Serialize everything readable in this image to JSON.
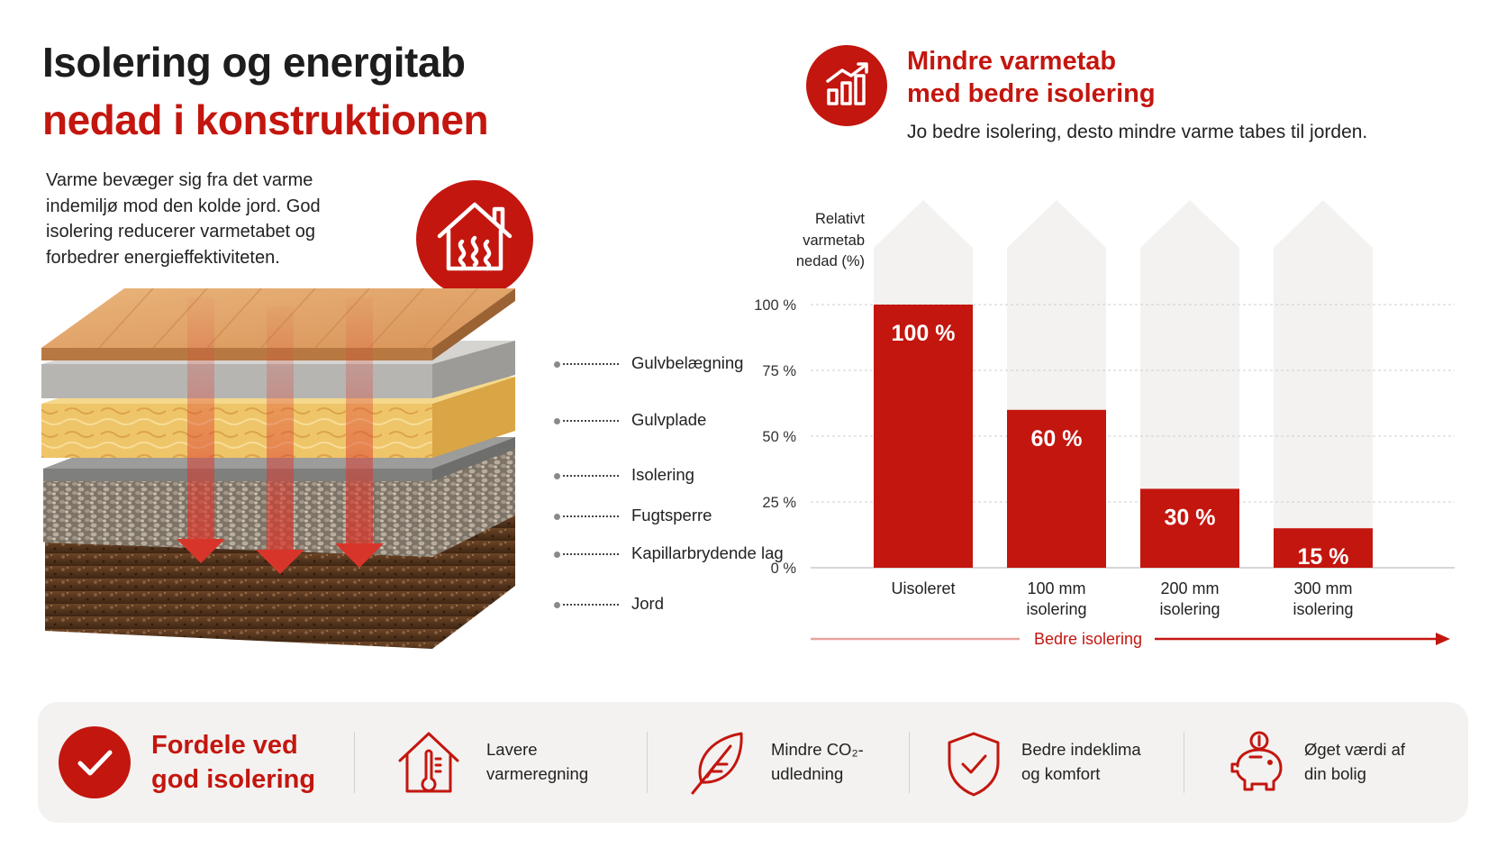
{
  "heading": {
    "line1": "Isolering og energitab",
    "line2": "nedad i konstruktionen"
  },
  "intro": {
    "text": "Varme bevæger sig fra det varme indemiljø mod den kolde jord. God isolering reducerer varmetabet og forbedrer energieffektiviteten."
  },
  "house_icon": "house-heat-icon",
  "layers": {
    "labels": [
      "Gulvbelægning",
      "Gulvplade",
      "Isolering",
      "Fugtsperre",
      "Kapillarbrydende lag",
      "Jord"
    ]
  },
  "chart_header": {
    "icon": "bar-growth-icon",
    "title_line1": "Mindre varmetab",
    "title_line2": "med bedre isolering",
    "subtitle": "Jo bedre isolering, desto mindre varme tabes til jorden."
  },
  "chart_data": {
    "type": "bar",
    "ylabel": "Relativt varmetab nedad (%)",
    "ylim": [
      0,
      100
    ],
    "yticks": [
      "0 %",
      "25 %",
      "50 %",
      "75 %",
      "100 %"
    ],
    "ytick_values": [
      0,
      25,
      50,
      75,
      100
    ],
    "categories": [
      [
        "Uisoleret"
      ],
      [
        "100 mm",
        "isolering"
      ],
      [
        "200 mm",
        "isolering"
      ],
      [
        "300 mm",
        "isolering"
      ]
    ],
    "values": [
      100,
      60,
      30,
      15
    ],
    "value_labels": [
      "100 %",
      "60 %",
      "30 %",
      "15 %"
    ],
    "grid": true,
    "bar_color": "#c3160f",
    "background_arrow_color": "#f3f2f0",
    "arrow_label": "Bedre isolering"
  },
  "benefits": {
    "title_line1": "Fordele ved",
    "title_line2": "god isolering",
    "check_icon": "check-icon",
    "items": [
      {
        "icon": "house-thermometer-icon",
        "line1": "Lavere",
        "line2": "varmeregning"
      },
      {
        "icon": "leaf-icon",
        "line1": "Mindre CO₂-",
        "line2": "udledning"
      },
      {
        "icon": "shield-check-icon",
        "line1": "Bedre indeklima",
        "line2": "og komfort"
      },
      {
        "icon": "piggy-bank-icon",
        "line1": "Øget værdi af",
        "line2": "din bolig"
      }
    ]
  },
  "colors": {
    "accent": "#c3160f",
    "text": "#1d1d1d",
    "panel": "#f3f2f0"
  }
}
